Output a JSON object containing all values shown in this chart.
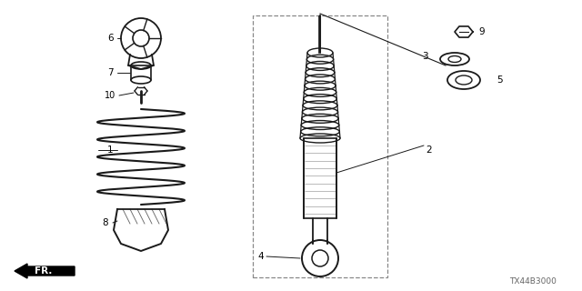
{
  "bg_color": "#ffffff",
  "line_color": "#1a1a1a",
  "label_color": "#000000",
  "code": "TX44B3000",
  "figsize": [
    6.4,
    3.2
  ],
  "dpi": 100
}
